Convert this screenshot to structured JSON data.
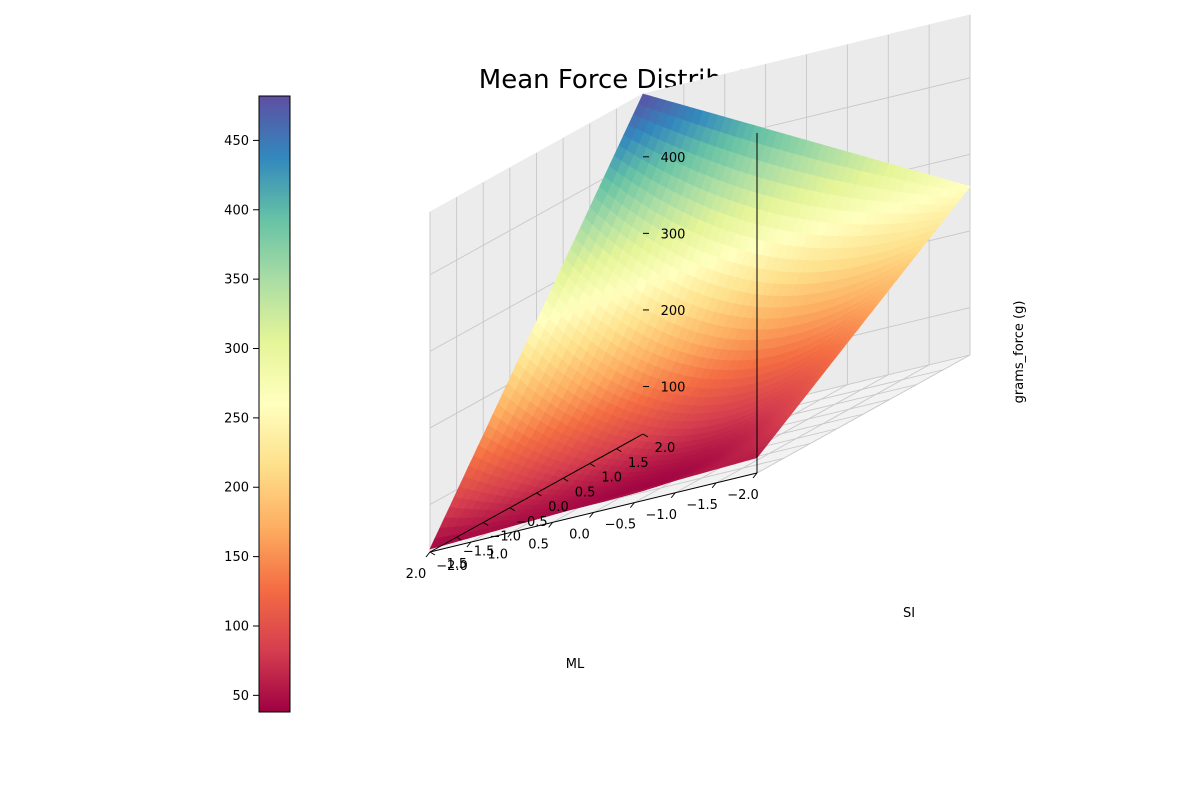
{
  "chart_data": {
    "type": "surface3d",
    "title": "Mean Force Distribution (Corset)",
    "xlabel": "ML",
    "ylabel": "SI",
    "zlabel": "grams_force (g)",
    "xlim": [
      -2.0,
      2.0
    ],
    "ylim": [
      -2.0,
      2.0
    ],
    "zlim": [
      38,
      482
    ],
    "x_ticks": [
      "−2.0",
      "−1.5",
      "−1.0",
      "−0.5",
      "0.0",
      "0.5",
      "1.0",
      "1.5",
      "2.0"
    ],
    "y_ticks": [
      "−2.0",
      "−1.5",
      "−1.0",
      "−0.5",
      "0.0",
      "0.5",
      "1.0",
      "1.5",
      "2.0"
    ],
    "z_ticks": [
      "100",
      "200",
      "300",
      "400"
    ],
    "colormap": "Spectral",
    "colorbar": {
      "min": 38,
      "max": 482,
      "ticks": [
        "50",
        "100",
        "150",
        "200",
        "250",
        "300",
        "350",
        "400",
        "450"
      ]
    },
    "surface_corner_values": {
      "x_-2_y_-2": 58,
      "x_2_y_-2": 42,
      "x_2_y_2": 482,
      "x_-2_y_2": 258,
      "x_0_y_0": 100
    },
    "grid": true
  }
}
